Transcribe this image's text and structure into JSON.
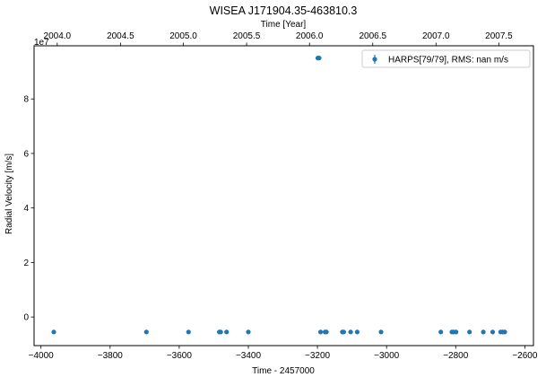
{
  "chart_data": {
    "type": "scatter",
    "title": "WISEA J171904.35-463810.3",
    "xlabel": "Time - 2457000",
    "ylabel": "Radial Velocity [m/s]",
    "top_xlabel": "Time [Year]",
    "y_offset_label": "1e7",
    "xlim": [
      -4020,
      -2575
    ],
    "ylim": [
      -1.05,
      9.95
    ],
    "y_scale_factor": 10000000,
    "x_ticks": [
      -4000,
      -3800,
      -3600,
      -3400,
      -3200,
      -3000,
      -2800,
      -2600
    ],
    "x_tick_labels": [
      "−4000",
      "−3800",
      "−3600",
      "−3400",
      "−3200",
      "−3000",
      "−2800",
      "−2600"
    ],
    "y_ticks": [
      0,
      2,
      4,
      6,
      8
    ],
    "y_tick_labels": [
      "0",
      "2",
      "4",
      "6",
      "8"
    ],
    "top_ticks": [
      {
        "label": "2004.0",
        "x": -3953
      },
      {
        "label": "2004.5",
        "x": -3770
      },
      {
        "label": "2005.0",
        "x": -3588
      },
      {
        "label": "2005.5",
        "x": -3405
      },
      {
        "label": "2006.0",
        "x": -3223
      },
      {
        "label": "2006.5",
        "x": -3040
      },
      {
        "label": "2007.0",
        "x": -2857
      },
      {
        "label": "2007.5",
        "x": -2675
      }
    ],
    "legend": {
      "label": "HARPS[79/79], RMS:       nan m/s",
      "placement": "upper right"
    },
    "grid": false,
    "series": [
      {
        "name": "HARPS[79/79], RMS:       nan m/s",
        "color": "#1f77b4",
        "x": [
          -3963,
          -3695,
          -3573,
          -3484,
          -3480,
          -3463,
          -3400,
          -3199,
          -3195,
          -3191,
          -3178,
          -3174,
          -3128,
          -3124,
          -3104,
          -3085,
          -3016,
          -2843,
          -2811,
          -2806,
          -2799,
          -2760,
          -2720,
          -2693,
          -2670,
          -2664,
          -2658
        ],
        "y": [
          -0.55,
          -0.55,
          -0.55,
          -0.55,
          -0.55,
          -0.55,
          -0.55,
          9.5,
          9.5,
          -0.55,
          -0.55,
          -0.55,
          -0.55,
          -0.55,
          -0.55,
          -0.55,
          -0.55,
          -0.55,
          -0.55,
          -0.55,
          -0.55,
          -0.55,
          -0.55,
          -0.55,
          -0.55,
          -0.55,
          -0.55
        ]
      }
    ]
  }
}
